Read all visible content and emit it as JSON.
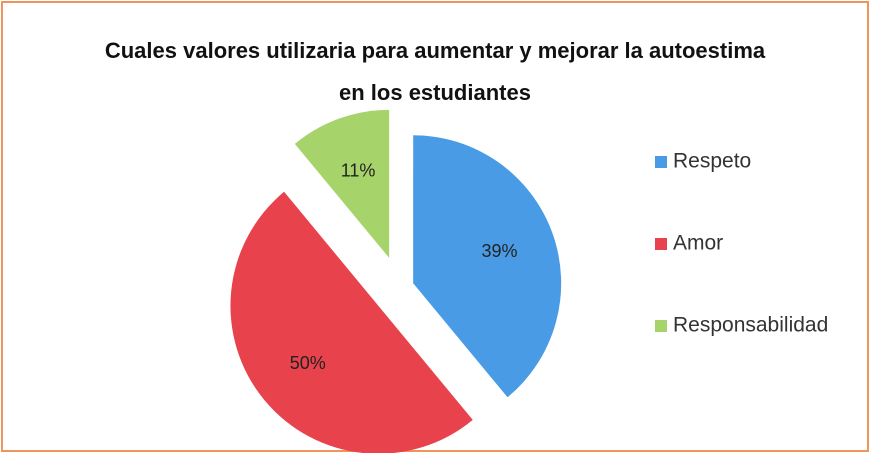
{
  "chart_data": {
    "type": "pie",
    "title": "Cuales valores utilizaria para aumentar y mejorar la autoestima en los estudiantes",
    "categories": [
      "Respeto",
      "Amor",
      "Responsabilidad"
    ],
    "values": [
      39,
      50,
      11
    ],
    "value_labels": [
      "39%",
      "50%",
      "11%"
    ],
    "colors": [
      "#4a9be6",
      "#e8434c",
      "#a6d36a"
    ],
    "legend": "right"
  }
}
